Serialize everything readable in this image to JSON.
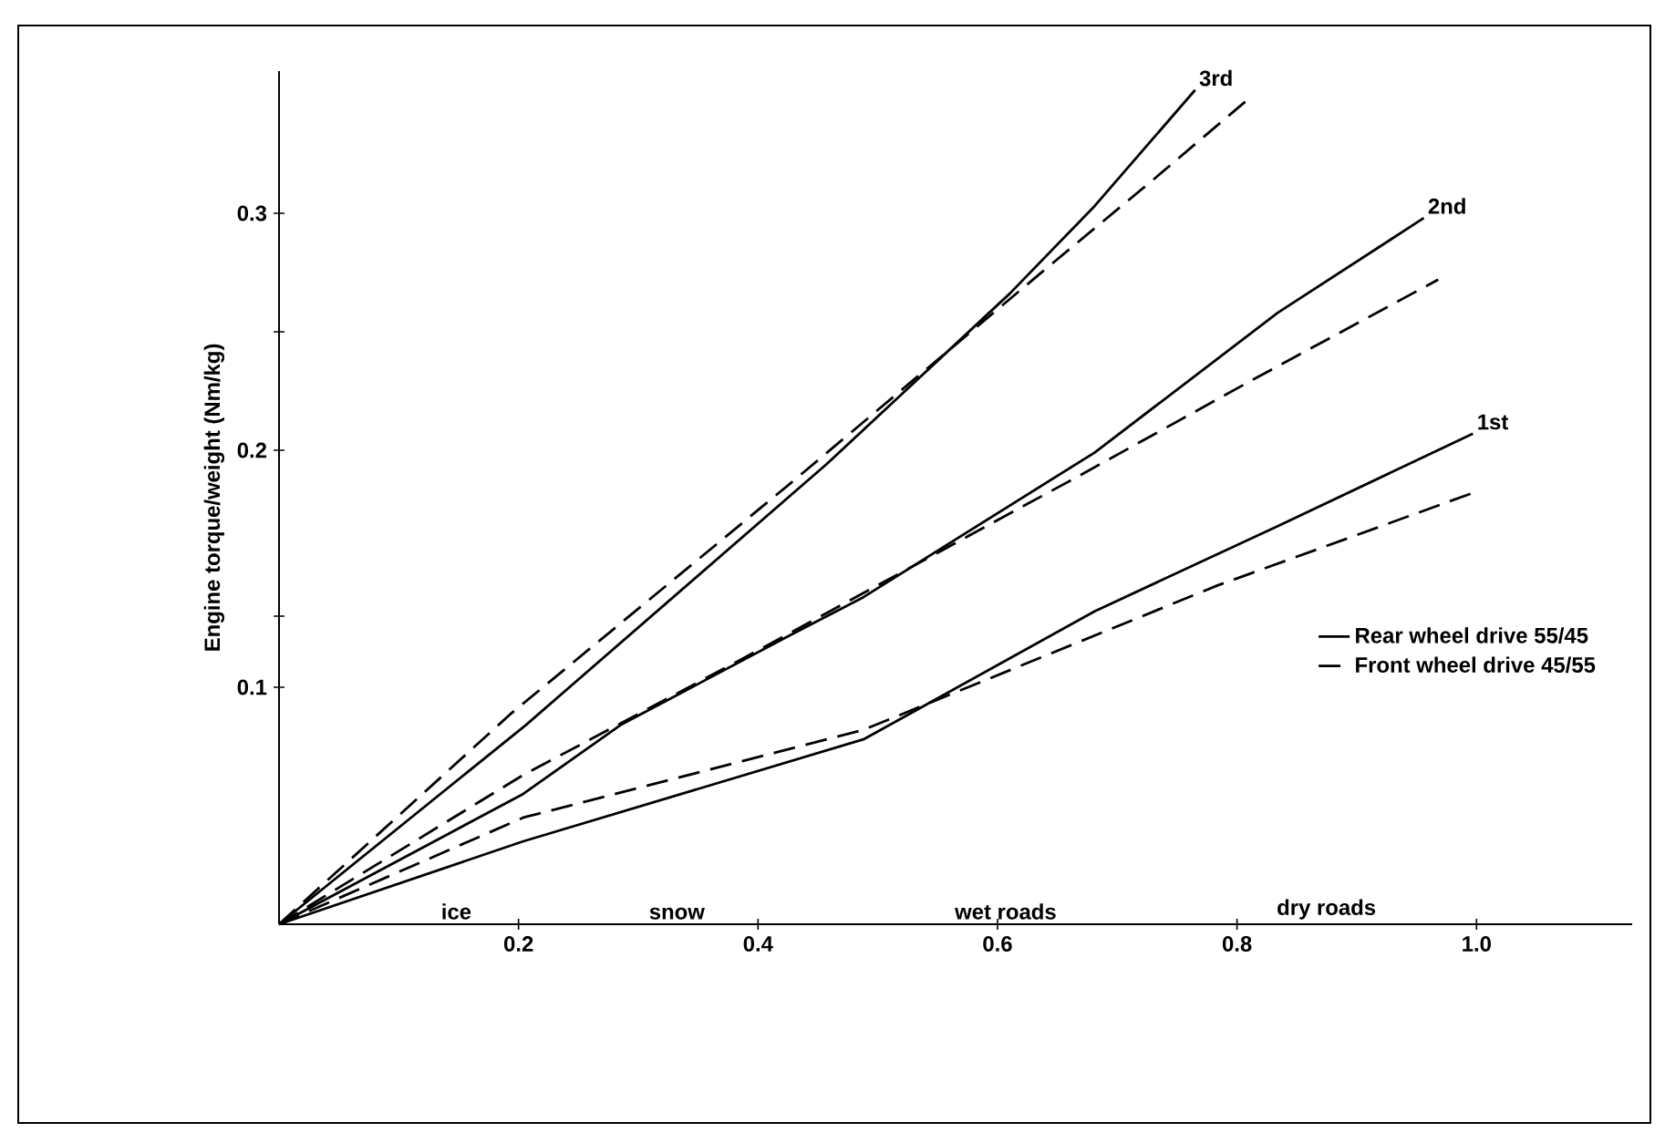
{
  "chart_data": {
    "type": "line",
    "ylabel": "Engine torque/weight (Nm/kg)",
    "xlim": [
      0,
      1.13
    ],
    "ylim": [
      0,
      0.36
    ],
    "xticks": [
      0.2,
      0.4,
      0.6,
      0.8,
      {
        "value": 1.0,
        "label": "1.0"
      }
    ],
    "yticks": [
      0.1,
      {
        "value": 0.13,
        "label": null
      },
      0.2,
      {
        "value": 0.25,
        "label": null
      },
      0.3
    ],
    "legend": "right",
    "marker": "none",
    "grid": false,
    "series": [
      {
        "color": "#000000",
        "line_style": "solid",
        "x": [
          0,
          0.206,
          0.457,
          0.61,
          0.681,
          0.765
        ],
        "values": [
          0,
          0.084,
          0.194,
          0.266,
          0.303,
          0.352
        ]
      },
      {
        "color": "#000000",
        "line_style": "solid",
        "x": [
          0,
          0.204,
          0.285,
          0.427,
          0.488,
          0.681,
          0.834,
          0.956
        ],
        "values": [
          0,
          0.055,
          0.084,
          0.122,
          0.138,
          0.199,
          0.258,
          0.298
        ]
      },
      {
        "name": "Rear wheel drive 55/45",
        "color": "#000000",
        "line_style": "solid",
        "x": [
          0,
          0.204,
          0.488,
          0.681,
          0.834,
          0.997
        ],
        "values": [
          0,
          0.035,
          0.078,
          0.132,
          0.168,
          0.207
        ]
      },
      {
        "color": "#000000",
        "line_style": "dashed",
        "x": [
          0,
          0.194,
          0.427,
          0.639,
          0.732,
          0.809
        ],
        "values": [
          0,
          0.089,
          0.186,
          0.276,
          0.315,
          0.348
        ]
      },
      {
        "color": "#000000",
        "line_style": "dashed",
        "x": [
          0,
          0.204,
          0.387,
          0.671,
          0.814,
          0.968
        ],
        "values": [
          0,
          0.063,
          0.112,
          0.19,
          0.23,
          0.272
        ]
      },
      {
        "name": "Front wheel drive 45/55",
        "color": "#000000",
        "line_style": "dashed",
        "x": [
          0,
          0.204,
          0.488,
          0.784,
          0.997
        ],
        "values": [
          0,
          0.045,
          0.082,
          0.143,
          0.182
        ]
      }
    ],
    "annotations": [
      {
        "text": "3rd",
        "x": 0.765,
        "y": 0.352
      },
      {
        "text": "2nd",
        "x": 0.956,
        "y": 0.298
      },
      {
        "text": "1st",
        "x": 0.997,
        "y": 0.207
      },
      "ice",
      "snow",
      "wet roads",
      "dry roads"
    ]
  }
}
